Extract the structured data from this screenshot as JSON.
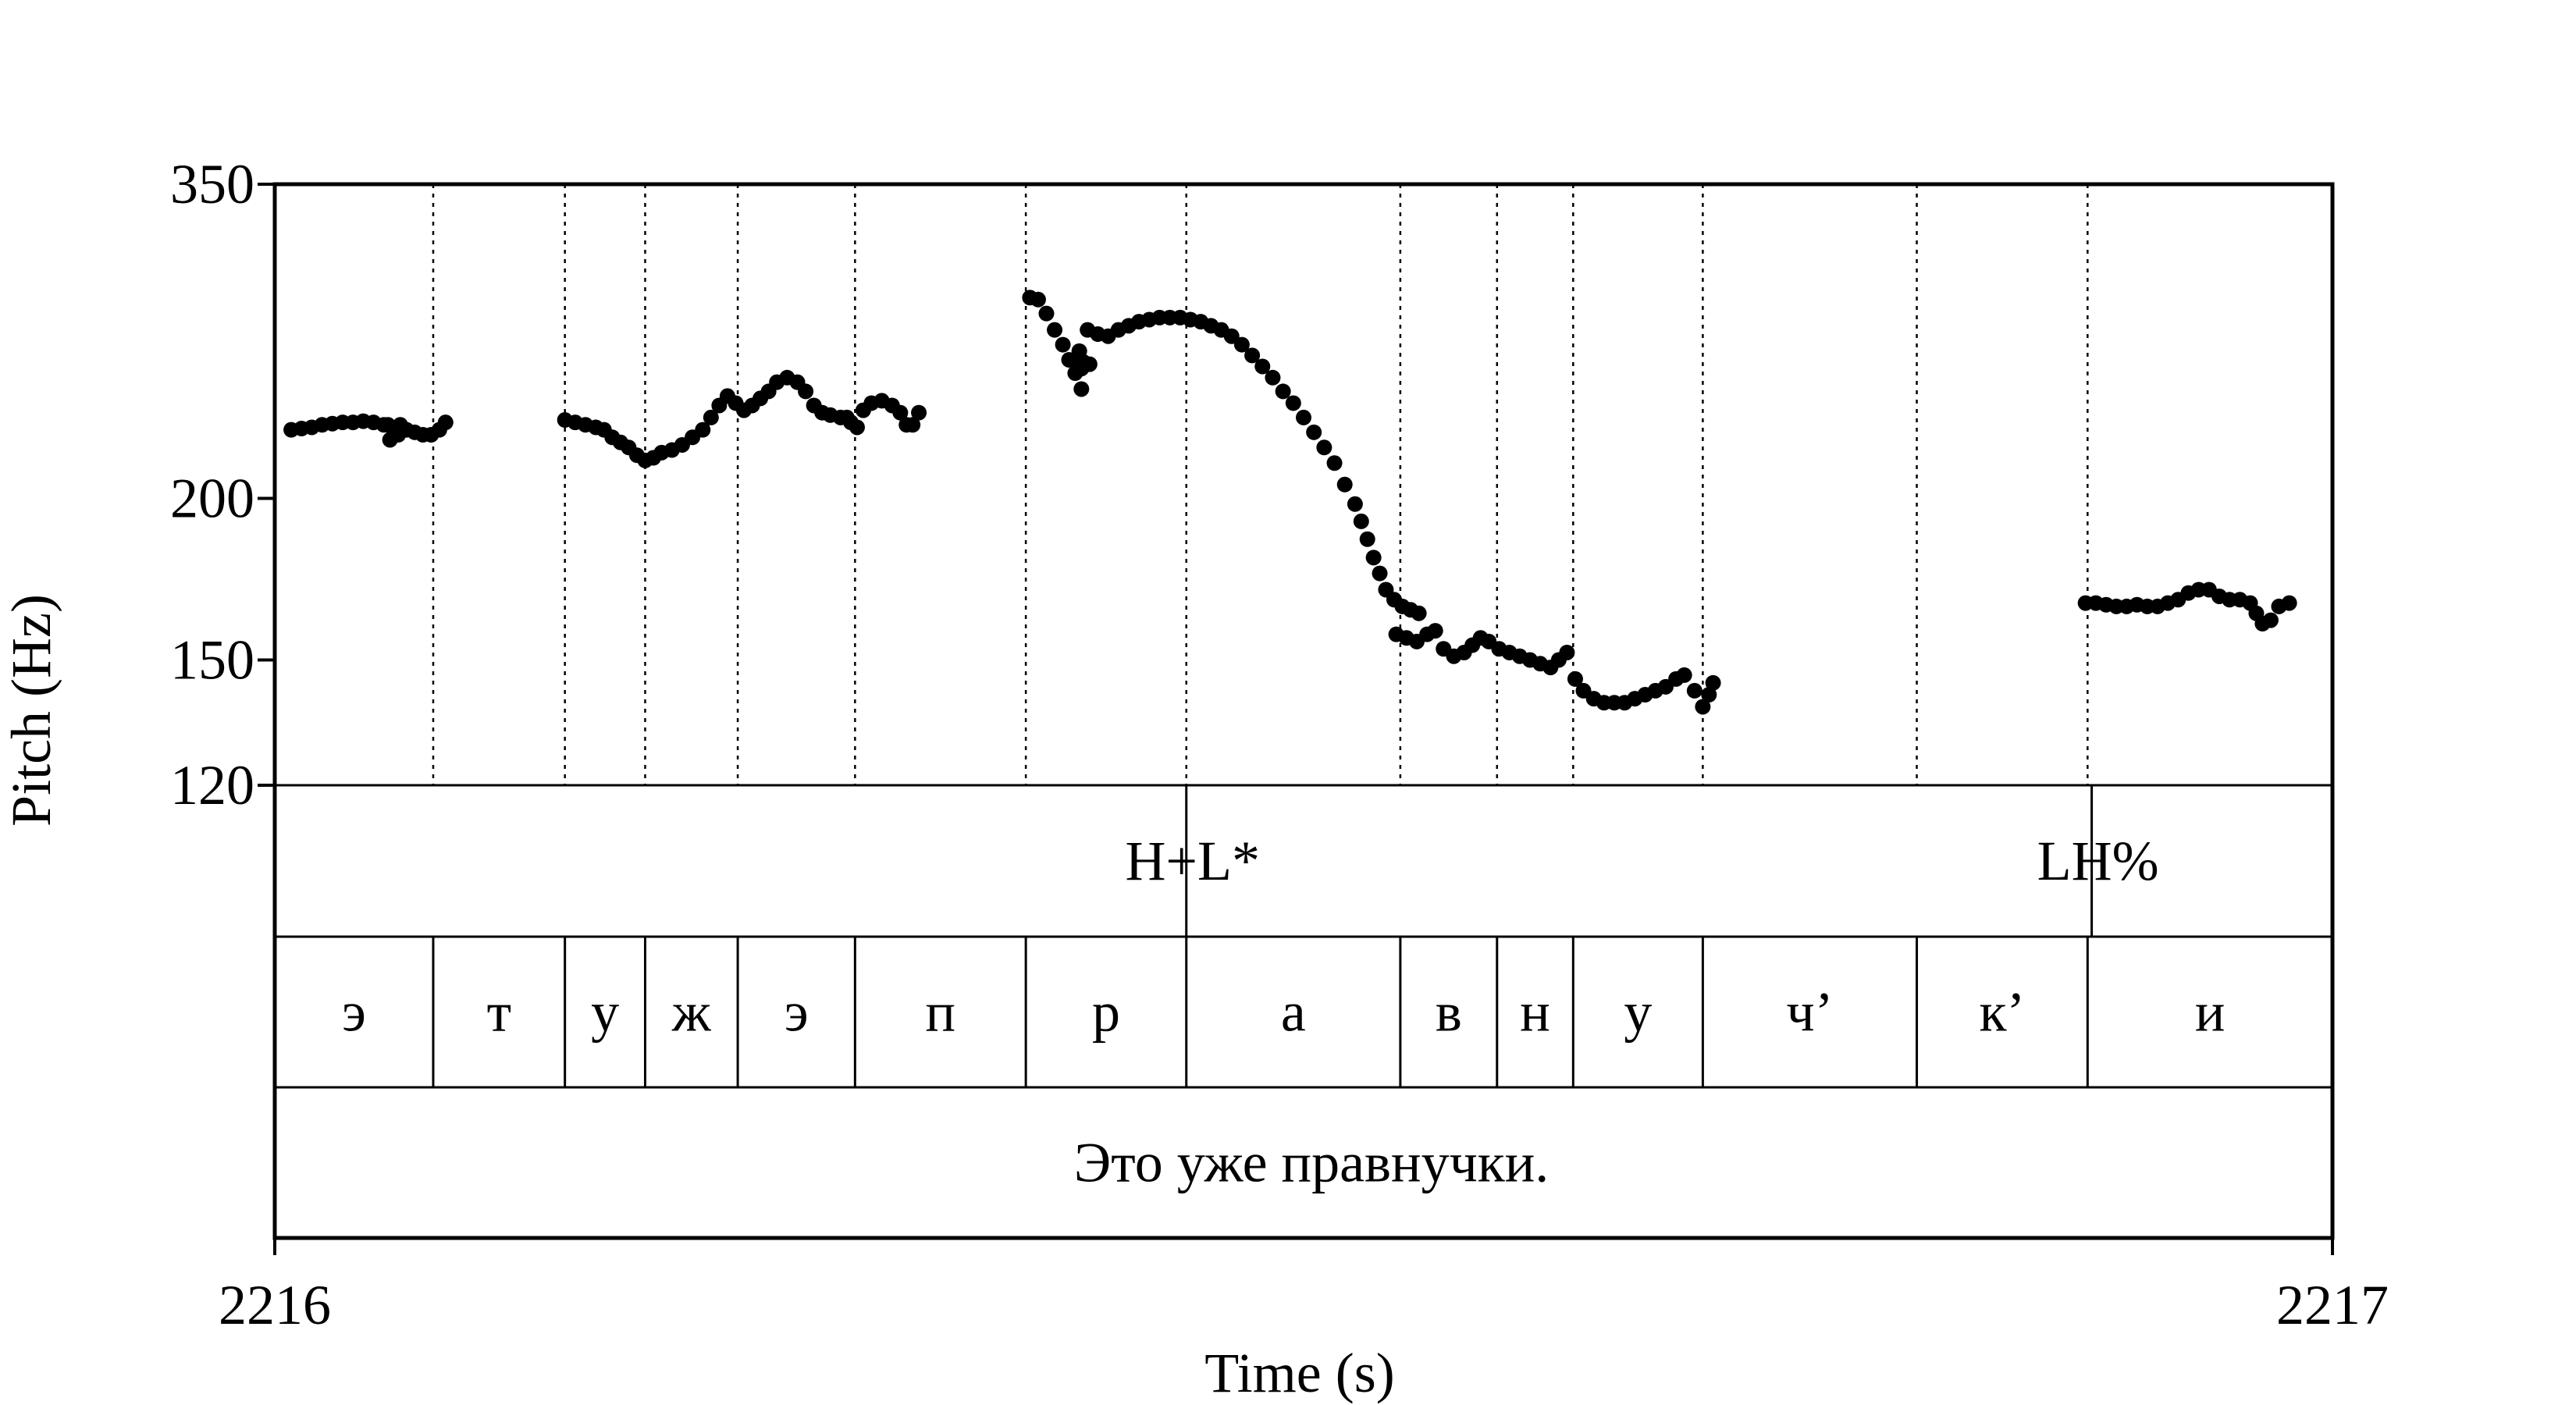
{
  "chart_data": {
    "type": "scatter",
    "xlabel": "Time (s)",
    "ylabel": "Pitch (Hz)",
    "xlim": [
      2216.0,
      2217.0
    ],
    "ylim": [
      120,
      350
    ],
    "yscale": "log",
    "yticks": [
      {
        "value": 120,
        "label": "120"
      },
      {
        "value": 150,
        "label": "150"
      },
      {
        "value": 200,
        "label": "200"
      },
      {
        "value": 350,
        "label": "350"
      }
    ],
    "xticks": [
      {
        "value": 2216.0,
        "label": "2216"
      },
      {
        "value": 2217.0,
        "label": "2217"
      }
    ],
    "grid": false,
    "marker_color": "#000000",
    "series": [
      {
        "points": [
          [
            2216.008,
            226
          ],
          [
            2216.013,
            226.5
          ],
          [
            2216.018,
            227
          ],
          [
            2216.023,
            228
          ],
          [
            2216.028,
            228.5
          ],
          [
            2216.033,
            229
          ],
          [
            2216.038,
            229
          ],
          [
            2216.043,
            229.5
          ],
          [
            2216.048,
            229
          ],
          [
            2216.053,
            228
          ],
          [
            2216.057,
            227
          ],
          [
            2216.061,
            228
          ],
          [
            2216.055,
            228
          ],
          [
            2216.064,
            226
          ],
          [
            2216.056,
            222
          ],
          [
            2216.06,
            224
          ],
          [
            2216.068,
            225
          ],
          [
            2216.072,
            224
          ],
          [
            2216.076,
            224
          ],
          [
            2216.08,
            226
          ],
          [
            2216.083,
            229
          ],
          [
            2216.141,
            230
          ],
          [
            2216.146,
            229
          ],
          [
            2216.151,
            228
          ],
          [
            2216.156,
            227
          ],
          [
            2216.16,
            226
          ],
          [
            2216.164,
            223
          ],
          [
            2216.168,
            221
          ],
          [
            2216.172,
            219
          ],
          [
            2216.176,
            216
          ],
          [
            2216.18,
            214
          ],
          [
            2216.184,
            215
          ],
          [
            2216.188,
            217
          ],
          [
            2216.193,
            218
          ],
          [
            2216.198,
            220
          ],
          [
            2216.203,
            223
          ],
          [
            2216.208,
            226
          ],
          [
            2216.212,
            231
          ],
          [
            2216.216,
            236
          ],
          [
            2216.22,
            240
          ],
          [
            2216.224,
            237
          ],
          [
            2216.228,
            234
          ],
          [
            2216.232,
            236
          ],
          [
            2216.236,
            239
          ],
          [
            2216.24,
            242
          ],
          [
            2216.244,
            246
          ],
          [
            2216.249,
            248
          ],
          [
            2216.254,
            246
          ],
          [
            2216.258,
            242
          ],
          [
            2216.262,
            236
          ],
          [
            2216.266,
            233
          ],
          [
            2216.27,
            232
          ],
          [
            2216.275,
            231
          ],
          [
            2216.28,
            229
          ],
          [
            2216.283,
            227
          ],
          [
            2216.278,
            231
          ],
          [
            2216.286,
            234
          ],
          [
            2216.29,
            237
          ],
          [
            2216.295,
            238
          ],
          [
            2216.3,
            236
          ],
          [
            2216.304,
            233
          ],
          [
            2216.307,
            228
          ],
          [
            2216.31,
            228
          ],
          [
            2216.313,
            233
          ],
          [
            2216.367,
            286
          ],
          [
            2216.371,
            285
          ],
          [
            2216.375,
            278
          ],
          [
            2216.379,
            270
          ],
          [
            2216.383,
            263
          ],
          [
            2216.386,
            256
          ],
          [
            2216.389,
            250
          ],
          [
            2216.392,
            243
          ],
          [
            2216.396,
            254
          ],
          [
            2216.392,
            252
          ],
          [
            2216.391,
            260
          ],
          [
            2216.393,
            255
          ],
          [
            2216.395,
            270
          ],
          [
            2216.4,
            268
          ],
          [
            2216.405,
            267
          ],
          [
            2216.41,
            270
          ],
          [
            2216.415,
            272
          ],
          [
            2216.42,
            274
          ],
          [
            2216.425,
            275
          ],
          [
            2216.43,
            276
          ],
          [
            2216.435,
            276
          ],
          [
            2216.44,
            276
          ],
          [
            2216.445,
            275
          ],
          [
            2216.45,
            274
          ],
          [
            2216.455,
            272
          ],
          [
            2216.46,
            270
          ],
          [
            2216.465,
            267
          ],
          [
            2216.47,
            263
          ],
          [
            2216.475,
            258
          ],
          [
            2216.48,
            253
          ],
          [
            2216.485,
            248
          ],
          [
            2216.49,
            242
          ],
          [
            2216.495,
            237
          ],
          [
            2216.5,
            231
          ],
          [
            2216.505,
            225
          ],
          [
            2216.51,
            219
          ],
          [
            2216.515,
            213
          ],
          [
            2216.52,
            205
          ],
          [
            2216.525,
            198
          ],
          [
            2216.528,
            192
          ],
          [
            2216.531,
            186
          ],
          [
            2216.534,
            180
          ],
          [
            2216.537,
            175
          ],
          [
            2216.54,
            170
          ],
          [
            2216.544,
            167
          ],
          [
            2216.548,
            165
          ],
          [
            2216.552,
            164
          ],
          [
            2216.556,
            163
          ],
          [
            2216.545,
            157
          ],
          [
            2216.55,
            156
          ],
          [
            2216.555,
            155
          ],
          [
            2216.56,
            157
          ],
          [
            2216.564,
            158
          ],
          [
            2216.568,
            153
          ],
          [
            2216.573,
            151
          ],
          [
            2216.578,
            152
          ],
          [
            2216.582,
            154
          ],
          [
            2216.586,
            156
          ],
          [
            2216.59,
            155
          ],
          [
            2216.595,
            153
          ],
          [
            2216.6,
            152
          ],
          [
            2216.605,
            151
          ],
          [
            2216.61,
            150
          ],
          [
            2216.615,
            149
          ],
          [
            2216.62,
            148
          ],
          [
            2216.624,
            150
          ],
          [
            2216.628,
            152
          ],
          [
            2216.632,
            145
          ],
          [
            2216.636,
            142
          ],
          [
            2216.641,
            140
          ],
          [
            2216.646,
            139
          ],
          [
            2216.651,
            139
          ],
          [
            2216.656,
            139
          ],
          [
            2216.661,
            140
          ],
          [
            2216.666,
            141
          ],
          [
            2216.671,
            142
          ],
          [
            2216.676,
            143
          ],
          [
            2216.681,
            145
          ],
          [
            2216.685,
            146
          ],
          [
            2216.69,
            142
          ],
          [
            2216.694,
            138
          ],
          [
            2216.697,
            141
          ],
          [
            2216.699,
            144
          ],
          [
            2216.88,
            166
          ],
          [
            2216.885,
            166
          ],
          [
            2216.89,
            165.5
          ],
          [
            2216.895,
            165
          ],
          [
            2216.9,
            165
          ],
          [
            2216.905,
            165.5
          ],
          [
            2216.91,
            165
          ],
          [
            2216.915,
            165
          ],
          [
            2216.92,
            166
          ],
          [
            2216.925,
            167
          ],
          [
            2216.93,
            169
          ],
          [
            2216.935,
            170
          ],
          [
            2216.94,
            170
          ],
          [
            2216.945,
            168
          ],
          [
            2216.95,
            167
          ],
          [
            2216.955,
            167
          ],
          [
            2216.96,
            166
          ],
          [
            2216.963,
            163
          ],
          [
            2216.966,
            160
          ],
          [
            2216.97,
            161
          ],
          [
            2216.974,
            165
          ],
          [
            2216.979,
            166
          ]
        ]
      }
    ],
    "tiers": [
      {
        "name": "tones",
        "labels": [
          {
            "text": "H+L*",
            "time": 2216.443
          },
          {
            "text": "LH%",
            "time": 2216.883
          }
        ],
        "boundaries": [
          2216.443,
          2216.883
        ]
      },
      {
        "name": "segments",
        "intervals": [
          {
            "text": "э",
            "start": 2216.0,
            "end": 2216.077
          },
          {
            "text": "т",
            "start": 2216.077,
            "end": 2216.141
          },
          {
            "text": "у",
            "start": 2216.141,
            "end": 2216.18
          },
          {
            "text": "ж",
            "start": 2216.18,
            "end": 2216.225
          },
          {
            "text": "э",
            "start": 2216.225,
            "end": 2216.282
          },
          {
            "text": "п",
            "start": 2216.282,
            "end": 2216.365
          },
          {
            "text": "р",
            "start": 2216.365,
            "end": 2216.443
          },
          {
            "text": "а",
            "start": 2216.443,
            "end": 2216.547
          },
          {
            "text": "в",
            "start": 2216.547,
            "end": 2216.594
          },
          {
            "text": "н",
            "start": 2216.594,
            "end": 2216.631
          },
          {
            "text": "у",
            "start": 2216.631,
            "end": 2216.694
          },
          {
            "text": "ч’",
            "start": 2216.694,
            "end": 2216.798
          },
          {
            "text": "к’",
            "start": 2216.798,
            "end": 2216.881
          },
          {
            "text": "и",
            "start": 2216.881,
            "end": 2217.0
          }
        ]
      },
      {
        "name": "sentence",
        "intervals": [
          {
            "text": "Это уже правнучки.",
            "start": 2216.0,
            "end": 2217.0
          }
        ]
      }
    ]
  }
}
